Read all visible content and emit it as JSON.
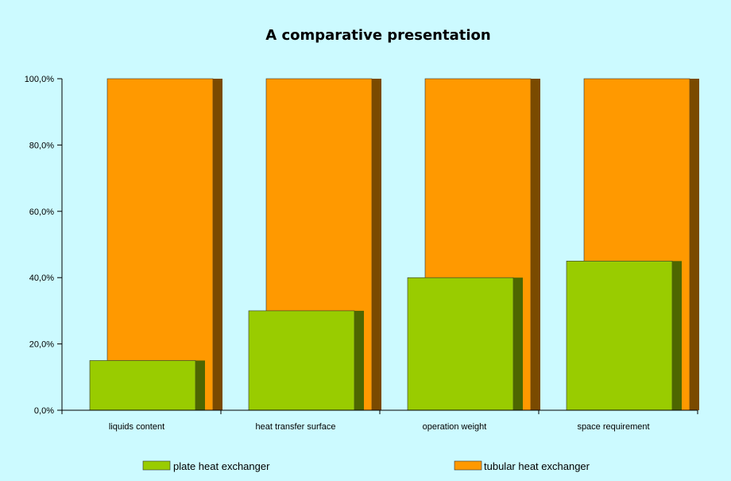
{
  "chart_data": {
    "type": "bar",
    "title": "A comparative presentation",
    "categories": [
      "liquids content",
      "heat transfer surface",
      "operation weight",
      "space requirement"
    ],
    "series": [
      {
        "name": "plate heat exchanger",
        "values": [
          15,
          30,
          40,
          45
        ],
        "color": "#99cc00",
        "side_color": "#4d6600"
      },
      {
        "name": "tubular heat exchanger",
        "values": [
          100,
          100,
          100,
          100
        ],
        "color": "#ff9900",
        "side_color": "#7a4a00"
      }
    ],
    "yticks": [
      "0,0%",
      "20,0%",
      "40,0%",
      "60,0%",
      "80,0%",
      "100,0%"
    ],
    "ylim": [
      0,
      100
    ],
    "grid": false,
    "legend_position": "bottom",
    "background": "#ccfaff"
  }
}
